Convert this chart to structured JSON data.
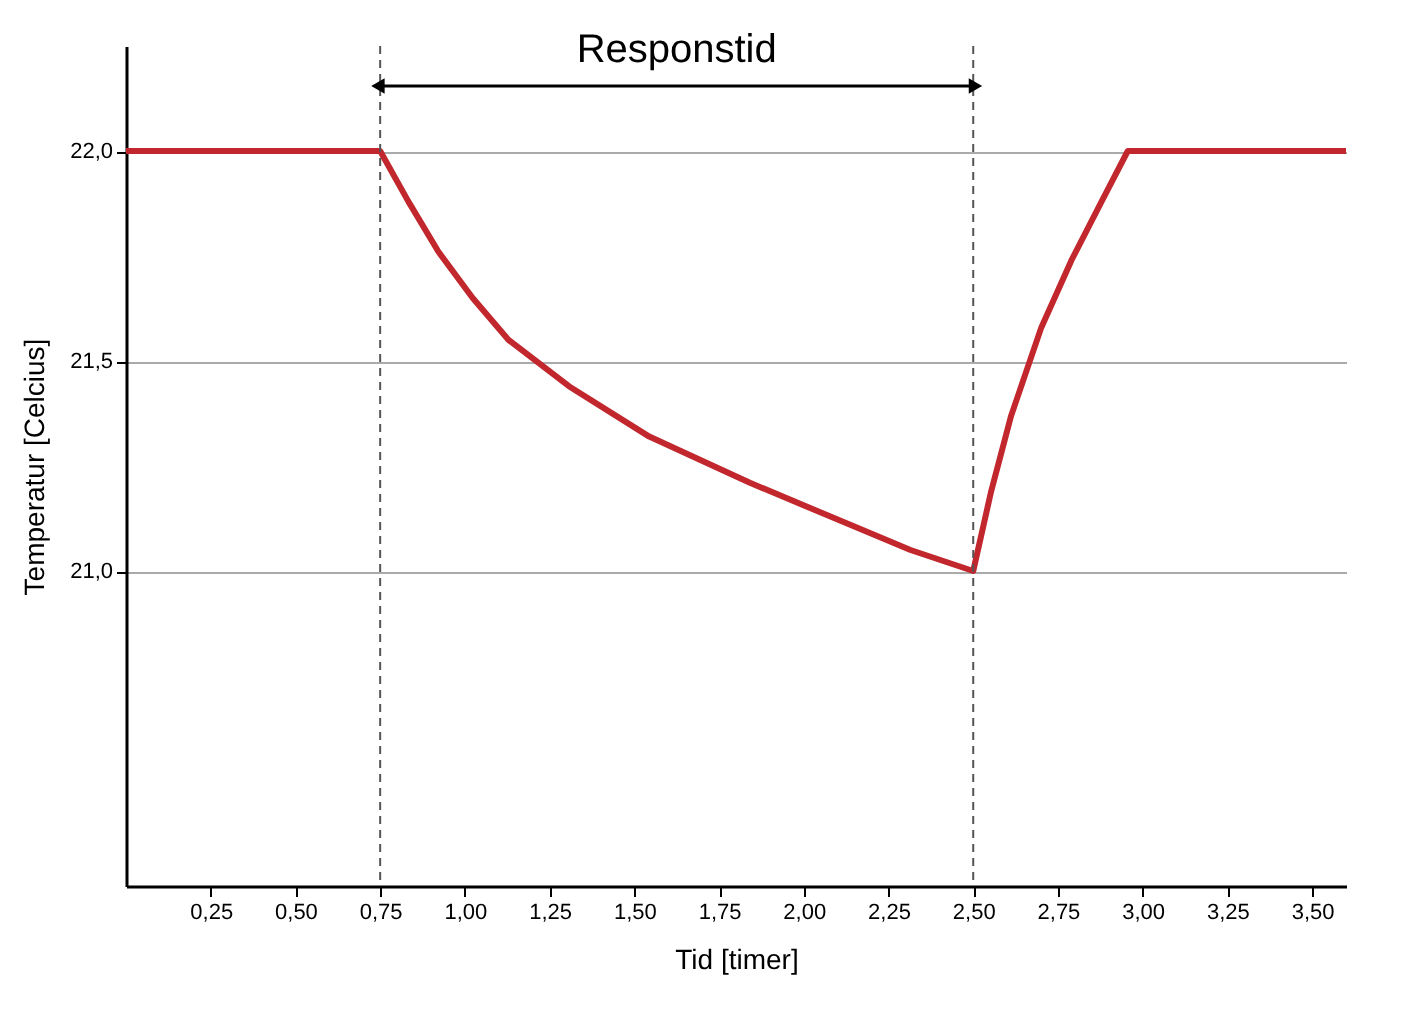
{
  "chart_data": {
    "type": "line",
    "xlabel": "Tid [timer]",
    "ylabel": "Temperatur [Celcius]",
    "x": [
      0,
      0.75,
      0.833,
      0.922,
      1.023,
      1.129,
      1.307,
      1.544,
      1.841,
      2.137,
      2.315,
      2.5,
      2.553,
      2.612,
      2.701,
      2.79,
      2.879,
      2.956,
      3.6
    ],
    "series": [
      {
        "color": "#c1272d",
        "values": [
          22,
          22,
          21.88,
          21.76,
          21.65,
          21.55,
          21.44,
          21.32,
          21.21,
          21.11,
          21.05,
          21.0,
          21.19,
          21.37,
          21.58,
          21.74,
          21.88,
          22,
          22
        ]
      }
    ],
    "xlim": [
      0,
      3.6
    ],
    "ylim": [
      20.25,
      22.25
    ],
    "xticks": [
      {
        "value": 0.25,
        "label": "0,25"
      },
      {
        "value": 0.5,
        "label": "0,50"
      },
      {
        "value": 0.75,
        "label": "0,75"
      },
      {
        "value": 1,
        "label": "1,00"
      },
      {
        "value": 1.25,
        "label": "1,25"
      },
      {
        "value": 1.5,
        "label": "1,50"
      },
      {
        "value": 1.75,
        "label": "1,75"
      },
      {
        "value": 2,
        "label": "2,00"
      },
      {
        "value": 2.25,
        "label": "2,25"
      },
      {
        "value": 2.5,
        "label": "2,50"
      },
      {
        "value": 2.75,
        "label": "2,75"
      },
      {
        "value": 3,
        "label": "3,00"
      },
      {
        "value": 3.25,
        "label": "3,25"
      },
      {
        "value": 3.5,
        "label": "3,50"
      }
    ],
    "yticks": [
      {
        "value": 21,
        "label": "21,0"
      },
      {
        "value": 21.5,
        "label": "21,5"
      },
      {
        "value": 22,
        "label": "22,0"
      }
    ],
    "grid": "y",
    "marker": "none",
    "line_style": "solid",
    "ref_lines": [
      {
        "axis": "x",
        "value": 0.75,
        "line_style": "dashed",
        "color": "#555555"
      },
      {
        "axis": "x",
        "value": 2.5,
        "line_style": "dashed",
        "color": "#555555"
      }
    ],
    "annotations": [
      "Responstid"
    ]
  }
}
